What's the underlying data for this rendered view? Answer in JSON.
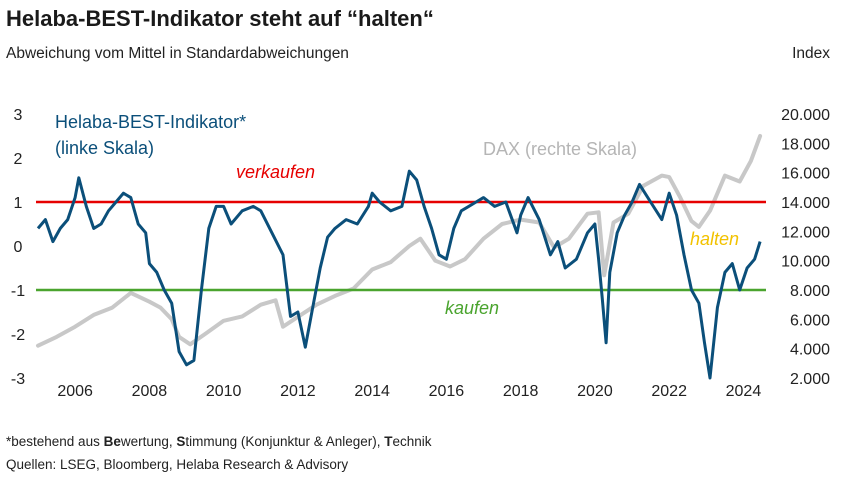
{
  "title": "Helaba-BEST-Indikator steht auf “halten“",
  "subtitle": "Abweichung vom Mittel in Standardabweichungen",
  "right_axis_unit": "Index",
  "footnote": {
    "prefix": "*bestehend aus ",
    "b1": "Be",
    "t1": "wertung, ",
    "b2": "S",
    "t2": "timmung (Konjunktur & Anleger), ",
    "b3": "T",
    "t3": "echnik"
  },
  "sources": "Quellen: LSEG, Bloomberg, Helaba Research & Advisory",
  "colors": {
    "indicator": "#0b4f7a",
    "dax": "#c8c8c8",
    "sell_line": "#e60000",
    "buy_line": "#4aa42e",
    "sell_text": "#e60000",
    "buy_text": "#4aa42e",
    "hold_text": "#f2c200"
  },
  "chart_data": {
    "type": "line",
    "x_ticks": [
      "2006",
      "2008",
      "2010",
      "2012",
      "2014",
      "2016",
      "2018",
      "2020",
      "2022",
      "2024"
    ],
    "y_left": {
      "ticks": [
        "3",
        "2",
        "1",
        "0",
        "-1",
        "-2",
        "-3"
      ],
      "ylim": [
        -3,
        3
      ]
    },
    "y_right": {
      "ticks": [
        "20.000",
        "18.000",
        "16.000",
        "14.000",
        "12.000",
        "10.000",
        "8.000",
        "6.000",
        "4.000",
        "2.000"
      ],
      "ylim": [
        2000,
        20000
      ]
    },
    "annotations": {
      "sell": "verkaufen",
      "buy": "kaufen",
      "hold": "halten",
      "indicator_label_1": "Helaba-BEST-Indikator*",
      "indicator_label_2": "(linke Skala)",
      "dax_label": "DAX (rechte Skala)"
    },
    "thresholds": [
      {
        "name": "verkaufen",
        "value": 1
      },
      {
        "name": "kaufen",
        "value": -1
      }
    ],
    "series": [
      {
        "axis": "left",
        "x": [
          2005.0,
          2005.2,
          2005.4,
          2005.6,
          2005.8,
          2006.0,
          2006.1,
          2006.3,
          2006.5,
          2006.7,
          2006.9,
          2007.1,
          2007.3,
          2007.5,
          2007.7,
          2007.9,
          2008.0,
          2008.2,
          2008.4,
          2008.6,
          2008.8,
          2009.0,
          2009.2,
          2009.4,
          2009.6,
          2009.8,
          2010.0,
          2010.2,
          2010.5,
          2010.8,
          2011.0,
          2011.3,
          2011.6,
          2011.8,
          2012.0,
          2012.2,
          2012.4,
          2012.6,
          2012.8,
          2013.0,
          2013.3,
          2013.6,
          2013.9,
          2014.0,
          2014.2,
          2014.5,
          2014.8,
          2015.0,
          2015.2,
          2015.4,
          2015.6,
          2015.8,
          2016.0,
          2016.2,
          2016.4,
          2016.6,
          2016.8,
          2017.0,
          2017.3,
          2017.6,
          2017.9,
          2018.0,
          2018.2,
          2018.5,
          2018.8,
          2019.0,
          2019.2,
          2019.5,
          2019.8,
          2020.0,
          2020.1,
          2020.2,
          2020.3,
          2020.4,
          2020.6,
          2020.8,
          2021.0,
          2021.2,
          2021.5,
          2021.8,
          2022.0,
          2022.2,
          2022.4,
          2022.6,
          2022.8,
          2022.95,
          2023.1,
          2023.3,
          2023.5,
          2023.7,
          2023.9,
          2024.1,
          2024.3,
          2024.45
        ],
        "values": [
          0.4,
          0.6,
          0.1,
          0.4,
          0.6,
          1.1,
          1.55,
          0.9,
          0.4,
          0.5,
          0.8,
          1.0,
          1.2,
          1.1,
          0.5,
          0.3,
          -0.4,
          -0.6,
          -1.0,
          -1.3,
          -2.4,
          -2.7,
          -2.6,
          -1.0,
          0.4,
          0.9,
          0.9,
          0.5,
          0.8,
          0.9,
          0.8,
          0.3,
          -0.2,
          -1.6,
          -1.5,
          -2.3,
          -1.4,
          -0.5,
          0.2,
          0.4,
          0.6,
          0.5,
          0.9,
          1.2,
          1.0,
          0.8,
          0.9,
          1.7,
          1.5,
          0.9,
          0.4,
          -0.2,
          -0.3,
          0.4,
          0.8,
          0.9,
          1.0,
          1.1,
          0.9,
          1.0,
          0.3,
          0.7,
          1.1,
          0.6,
          -0.2,
          0.1,
          -0.5,
          -0.3,
          0.3,
          0.5,
          -0.3,
          -1.2,
          -2.2,
          -0.6,
          0.3,
          0.7,
          1.0,
          1.4,
          1.0,
          0.6,
          1.2,
          0.7,
          -0.2,
          -1.0,
          -1.3,
          -2.2,
          -3.0,
          -1.4,
          -0.6,
          -0.4,
          -1.0,
          -0.5,
          -0.3,
          0.1
        ]
      },
      {
        "axis": "right",
        "x": [
          2005.0,
          2005.5,
          2006.0,
          2006.5,
          2007.0,
          2007.5,
          2008.0,
          2008.3,
          2008.6,
          2008.8,
          2009.1,
          2009.5,
          2010.0,
          2010.5,
          2011.0,
          2011.4,
          2011.6,
          2011.9,
          2012.5,
          2013.0,
          2013.5,
          2014.0,
          2014.5,
          2015.0,
          2015.3,
          2015.7,
          2016.1,
          2016.5,
          2017.0,
          2017.5,
          2018.0,
          2018.5,
          2018.9,
          2019.3,
          2019.8,
          2020.1,
          2020.25,
          2020.5,
          2020.9,
          2021.3,
          2021.8,
          2022.0,
          2022.3,
          2022.6,
          2022.8,
          2023.1,
          2023.5,
          2023.9,
          2024.2,
          2024.45
        ],
        "values": [
          4200,
          4800,
          5500,
          6300,
          6800,
          7800,
          7200,
          6800,
          6000,
          4800,
          4300,
          5000,
          5900,
          6200,
          7000,
          7300,
          5500,
          6000,
          7000,
          7600,
          8100,
          9400,
          9900,
          11000,
          11500,
          10000,
          9600,
          10100,
          11500,
          12500,
          12800,
          12600,
          10900,
          11500,
          13200,
          13300,
          9000,
          12600,
          13200,
          15100,
          15800,
          15700,
          14300,
          12700,
          12300,
          13400,
          15800,
          15400,
          16800,
          18500
        ]
      }
    ]
  }
}
